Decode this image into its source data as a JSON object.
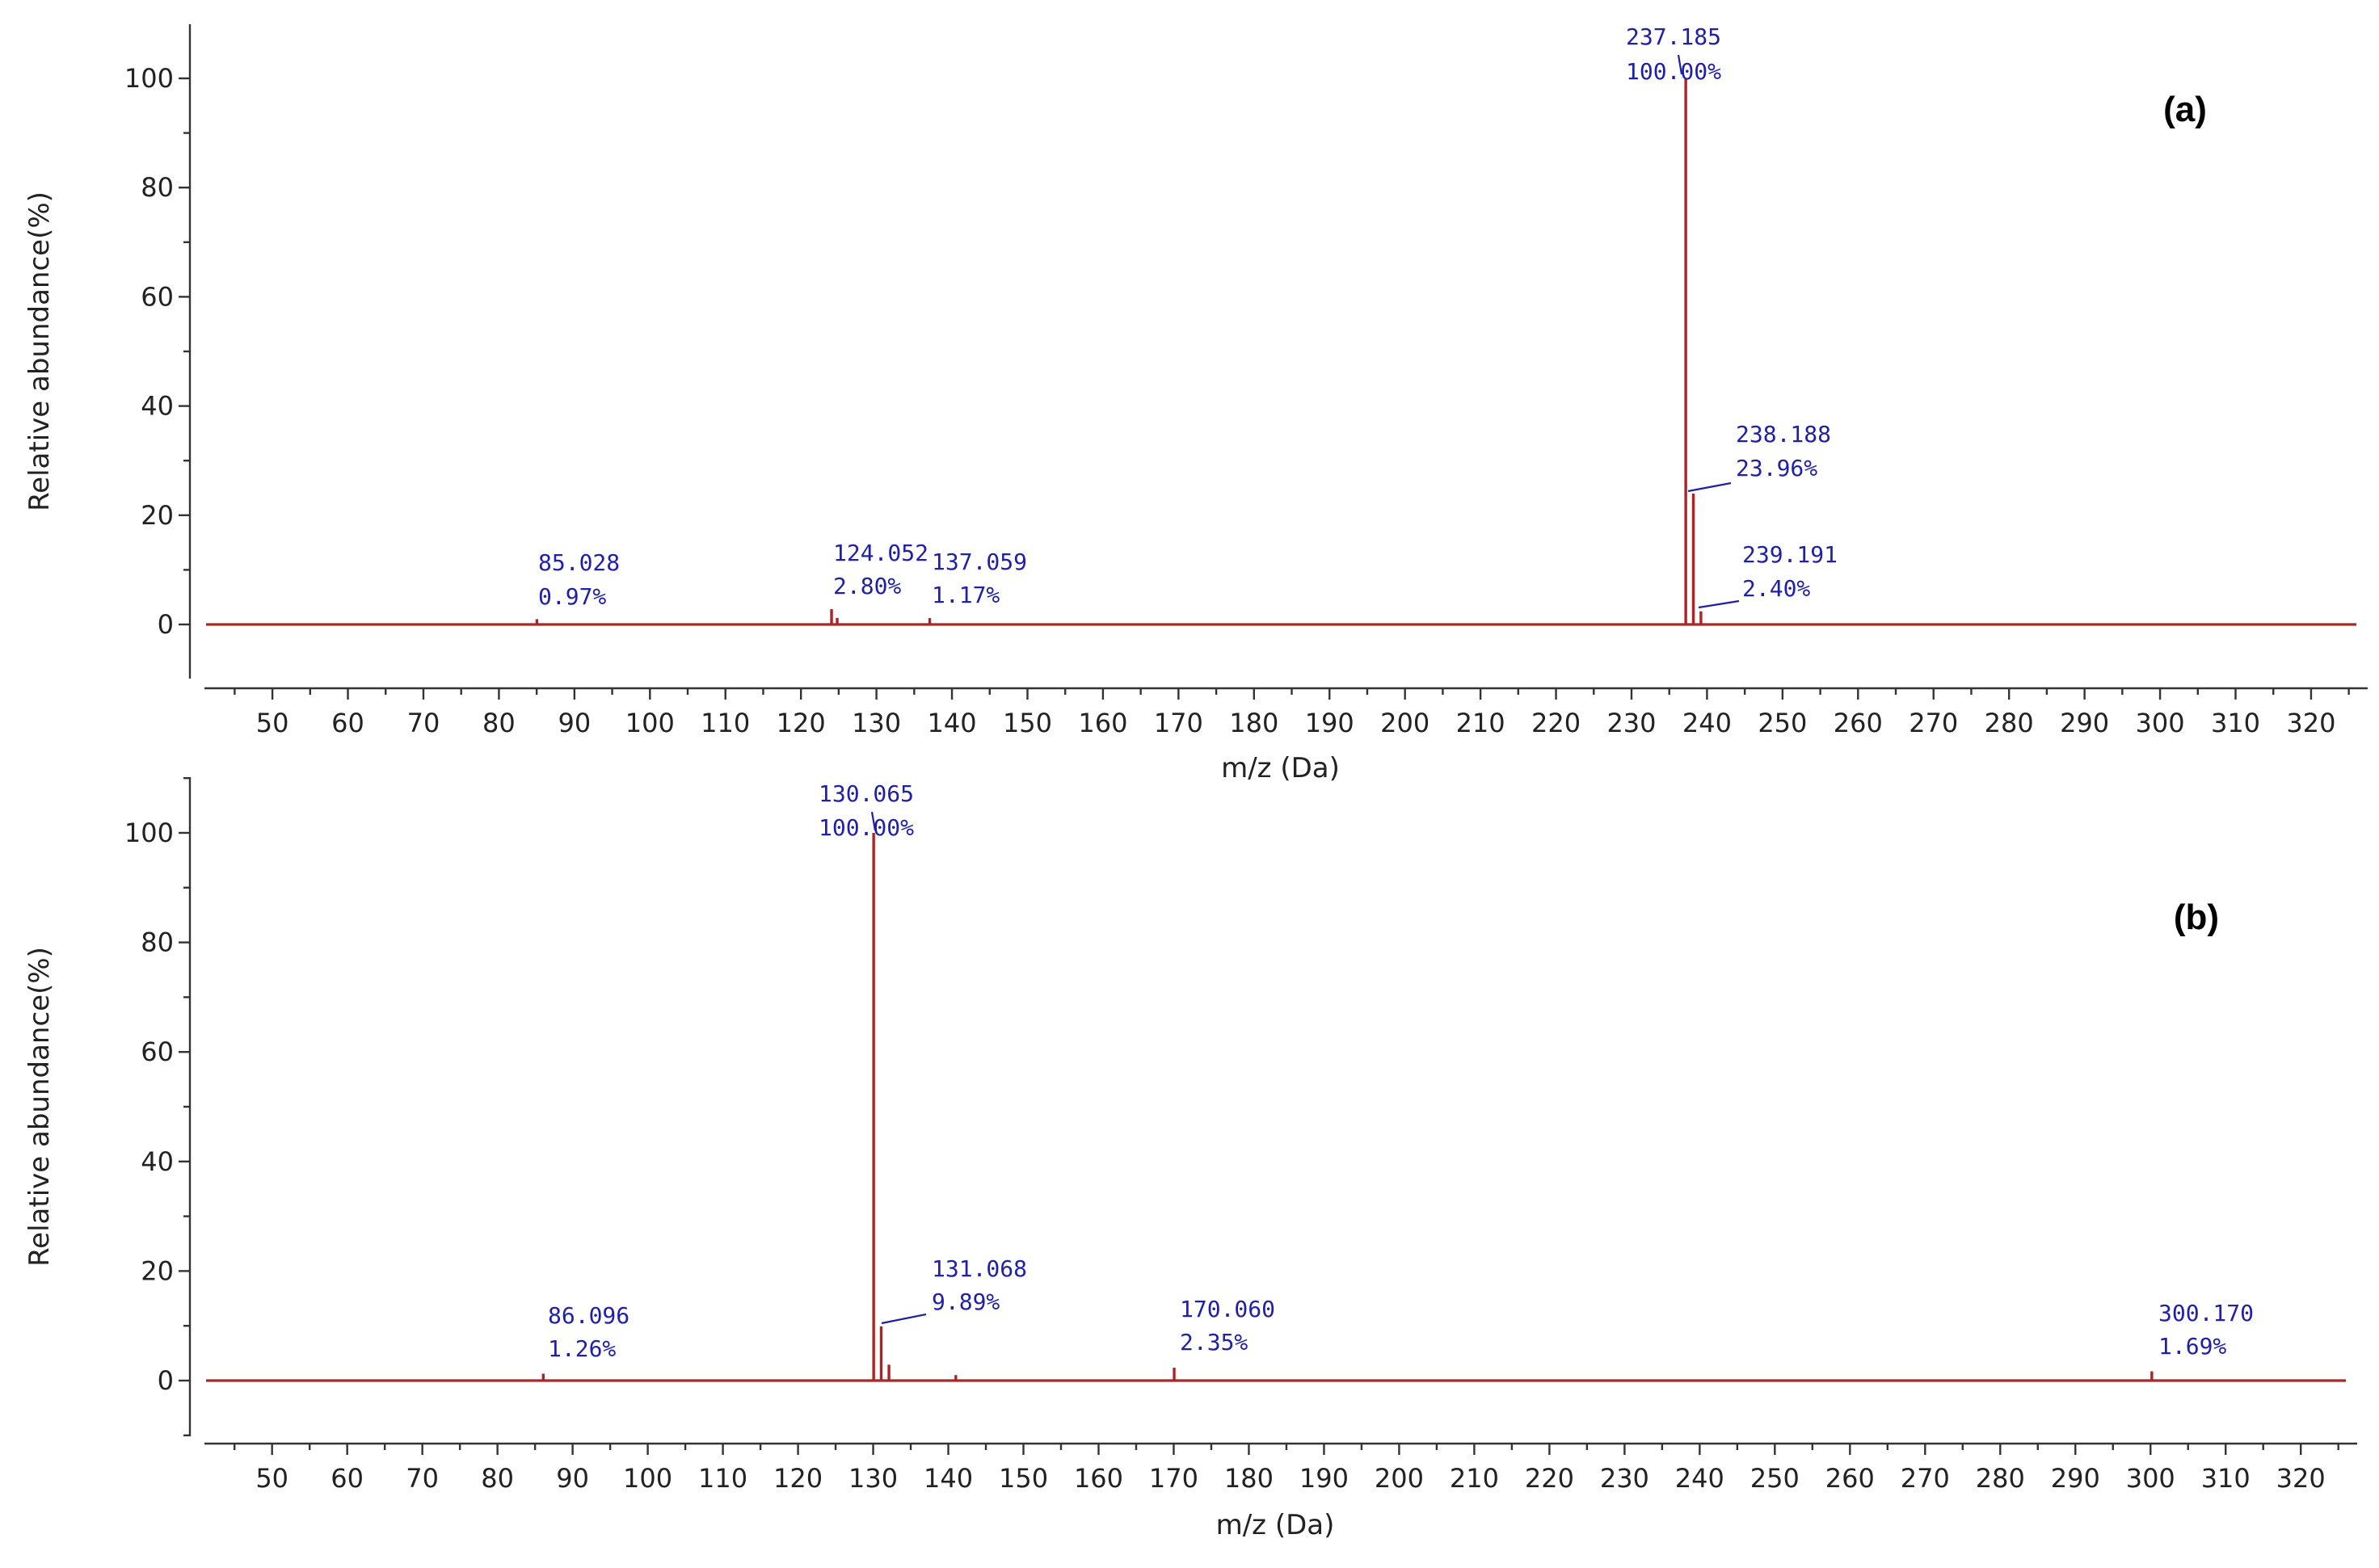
{
  "chart_data": [
    {
      "type": "bar",
      "panel_label": "(a)",
      "xlabel": "m/z (Da)",
      "ylabel": "Relative abundance(%)",
      "xlim": [
        41,
        326
      ],
      "ylim": [
        -10,
        110
      ],
      "xticks": [
        50,
        60,
        70,
        80,
        90,
        100,
        110,
        120,
        130,
        140,
        150,
        160,
        170,
        180,
        190,
        200,
        210,
        220,
        230,
        240,
        250,
        260,
        270,
        280,
        290,
        300,
        310,
        320
      ],
      "yticks": [
        0,
        20,
        40,
        60,
        80,
        100
      ],
      "grid": false,
      "color": "#b22222",
      "label_color": "#1f1fa8",
      "peaks": [
        {
          "mz": 237.185,
          "abundance": 100.0
        },
        {
          "mz": 238.188,
          "abundance": 23.96
        },
        {
          "mz": 239.191,
          "abundance": 2.4
        },
        {
          "mz": 124.052,
          "abundance": 2.8
        },
        {
          "mz": 124.8,
          "abundance": 1.2
        },
        {
          "mz": 137.059,
          "abundance": 1.17
        },
        {
          "mz": 85.028,
          "abundance": 0.97
        }
      ],
      "annotations": [
        {
          "mz_text": "237.185",
          "pct_text": "100.00%",
          "mz": 237.185,
          "abundance": 100.0
        },
        {
          "mz_text": "238.188",
          "pct_text": "23.96%",
          "mz": 238.188,
          "abundance": 23.96
        },
        {
          "mz_text": "239.191",
          "pct_text": "2.40%",
          "mz": 239.191,
          "abundance": 2.4
        },
        {
          "mz_text": "124.052",
          "pct_text": "2.80%",
          "mz": 124.052,
          "abundance": 2.8
        },
        {
          "mz_text": "137.059",
          "pct_text": "1.17%",
          "mz": 137.059,
          "abundance": 1.17
        },
        {
          "mz_text": "85.028",
          "pct_text": "0.97%",
          "mz": 85.028,
          "abundance": 0.97
        }
      ]
    },
    {
      "type": "bar",
      "panel_label": "(b)",
      "xlabel": "m/z (Da)",
      "ylabel": "Relative abundance(%)",
      "xlim": [
        41,
        326
      ],
      "ylim": [
        -10,
        110
      ],
      "xticks": [
        50,
        60,
        70,
        80,
        90,
        100,
        110,
        120,
        130,
        140,
        150,
        160,
        170,
        180,
        190,
        200,
        210,
        220,
        230,
        240,
        250,
        260,
        270,
        280,
        290,
        300,
        310,
        320
      ],
      "yticks": [
        0,
        20,
        40,
        60,
        80,
        100
      ],
      "grid": false,
      "color": "#b22222",
      "label_color": "#1f1fa8",
      "peaks": [
        {
          "mz": 130.065,
          "abundance": 100.0
        },
        {
          "mz": 131.068,
          "abundance": 9.89
        },
        {
          "mz": 132.1,
          "abundance": 2.9
        },
        {
          "mz": 141.0,
          "abundance": 1.0
        },
        {
          "mz": 170.06,
          "abundance": 2.35
        },
        {
          "mz": 86.096,
          "abundance": 1.26
        },
        {
          "mz": 300.17,
          "abundance": 1.69
        }
      ],
      "annotations": [
        {
          "mz_text": "130.065",
          "pct_text": "100.00%",
          "mz": 130.065,
          "abundance": 100.0
        },
        {
          "mz_text": "131.068",
          "pct_text": "9.89%",
          "mz": 131.068,
          "abundance": 9.89
        },
        {
          "mz_text": "170.060",
          "pct_text": "2.35%",
          "mz": 170.06,
          "abundance": 2.35
        },
        {
          "mz_text": "86.096",
          "pct_text": "1.26%",
          "mz": 86.096,
          "abundance": 1.26
        },
        {
          "mz_text": "300.170",
          "pct_text": "1.69%",
          "mz": 300.17,
          "abundance": 1.69
        }
      ]
    }
  ]
}
